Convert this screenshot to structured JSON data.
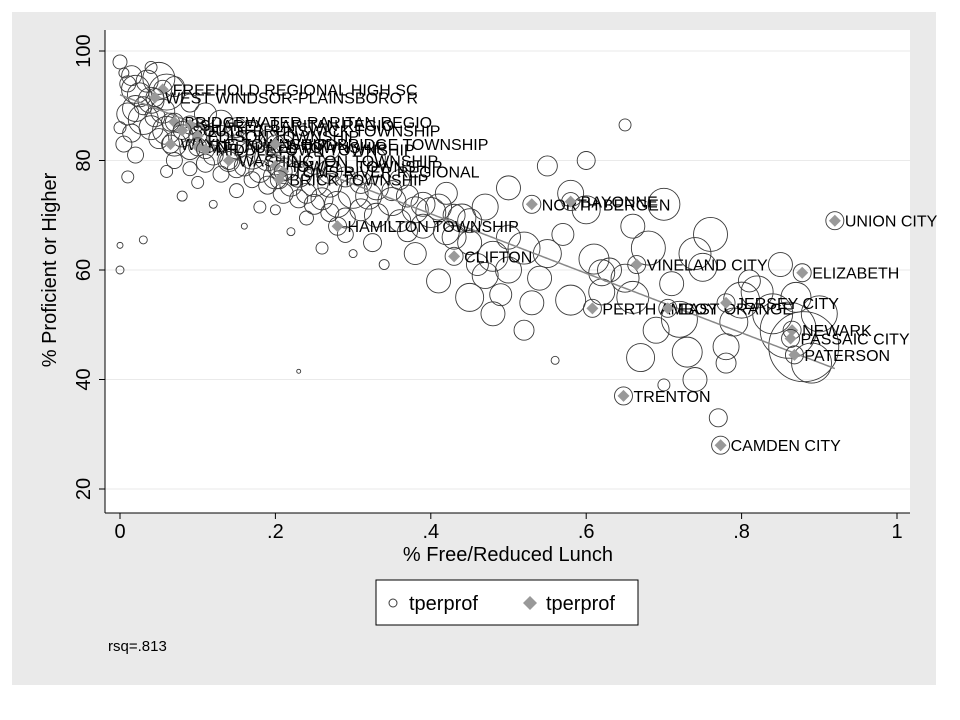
{
  "chart_data": {
    "type": "scatter",
    "title": "",
    "xlabel": "% Free/Reduced Lunch",
    "ylabel": "% Proficient or Higher",
    "xlim": [
      0,
      1
    ],
    "ylim": [
      20,
      100
    ],
    "xticks": [
      0,
      0.2,
      0.4,
      0.6,
      0.8,
      1
    ],
    "xtick_labels": [
      "0",
      ".2",
      ".4",
      ".6",
      ".8",
      "1"
    ],
    "yticks": [
      20,
      40,
      60,
      80,
      100
    ],
    "ytick_labels": [
      "20",
      "40",
      "60",
      "80",
      "100"
    ],
    "grid": "horizontal",
    "legend": {
      "position": "bottom",
      "entries": [
        {
          "marker": "hollow-circle",
          "label": "tperprof"
        },
        {
          "marker": "filled-diamond",
          "label": "tperprof"
        }
      ]
    },
    "note": "rsq=.813",
    "colors": {
      "outer": "#eaeaea",
      "plot": "#ffffff",
      "grid": "#eaeaea",
      "circle": "#3a3a3a",
      "diamond": "#999999",
      "fit_line": "#888888"
    },
    "labeled_districts": [
      {
        "name": "FREEHOLD REGIONAL HIGH SC",
        "x": 0.055,
        "y": 93
      },
      {
        "name": "WEST WINDSOR-PLAINSBORO R",
        "x": 0.045,
        "y": 91.5
      },
      {
        "name": "BRIDGEWATER-RARITAN REGIO",
        "x": 0.07,
        "y": 87
      },
      {
        "name": "SHAREY BARITAN REGIO",
        "x": 0.09,
        "y": 86.5
      },
      {
        "name": "SOUTH BRUNSWICK TOWNSHIP",
        "x": 0.08,
        "y": 85.5
      },
      {
        "name": "EDISON TOWNSHIP",
        "x": 0.1,
        "y": 84.5
      },
      {
        "name": "WAYNE TOWNSHIP",
        "x": 0.065,
        "y": 83
      },
      {
        "name": "MT LAUREL TOWNSHIP",
        "x": 0.1,
        "y": 82.5
      },
      {
        "name": "MIDDLETOWN TOWNSHIP",
        "x": 0.11,
        "y": 82
      },
      {
        "name": "WOODBRIDGE TOWNSHIP",
        "x": 0.2,
        "y": 83
      },
      {
        "name": "WASHINGTON TOWNSHIP",
        "x": 0.14,
        "y": 80
      },
      {
        "name": "HOWELL TOWNSHIP",
        "x": 0.2,
        "y": 79
      },
      {
        "name": "TOMS RIVER REGIONAL",
        "x": 0.21,
        "y": 78
      },
      {
        "name": "BRICK TOWNSHIP",
        "x": 0.205,
        "y": 76.5
      },
      {
        "name": "HAMILTON TOWNSHIP",
        "x": 0.28,
        "y": 68
      },
      {
        "name": "CLIFTON",
        "x": 0.43,
        "y": 62.5
      },
      {
        "name": "NORTH BERGEN",
        "x": 0.53,
        "y": 72
      },
      {
        "name": "BAYONNE",
        "x": 0.58,
        "y": 72.5
      },
      {
        "name": "VINELAND CITY",
        "x": 0.665,
        "y": 61
      },
      {
        "name": "UNION CITY",
        "x": 0.92,
        "y": 69
      },
      {
        "name": "ELIZABETH",
        "x": 0.878,
        "y": 59.5
      },
      {
        "name": "PERTH AMBOY",
        "x": 0.608,
        "y": 53
      },
      {
        "name": "EAST ORANGE",
        "x": 0.705,
        "y": 53
      },
      {
        "name": "JERSEY CITY",
        "x": 0.78,
        "y": 54
      },
      {
        "name": "NEWARK",
        "x": 0.865,
        "y": 49
      },
      {
        "name": "PASSAIC CITY",
        "x": 0.863,
        "y": 47.5
      },
      {
        "name": "PATERSON",
        "x": 0.868,
        "y": 44.5
      },
      {
        "name": "TRENTON",
        "x": 0.648,
        "y": 37
      },
      {
        "name": "CAMDEN CITY",
        "x": 0.773,
        "y": 28
      }
    ],
    "unlabeled_points": [
      [
        0.0,
        98.0,
        7
      ],
      [
        0.005,
        96.0,
        5
      ],
      [
        0.01,
        94.0,
        8
      ],
      [
        0.015,
        95.5,
        10
      ],
      [
        0.02,
        93.0,
        14
      ],
      [
        0.025,
        92.0,
        12
      ],
      [
        0.03,
        90.0,
        9
      ],
      [
        0.035,
        94.5,
        11
      ],
      [
        0.04,
        91.0,
        13
      ],
      [
        0.045,
        88.0,
        10
      ],
      [
        0.05,
        95.0,
        16
      ],
      [
        0.055,
        89.0,
        12
      ],
      [
        0.06,
        92.5,
        18
      ],
      [
        0.065,
        87.0,
        9
      ],
      [
        0.0,
        86.0,
        6
      ],
      [
        0.005,
        83.0,
        8
      ],
      [
        0.01,
        88.5,
        11
      ],
      [
        0.015,
        85.0,
        9
      ],
      [
        0.02,
        89.5,
        13
      ],
      [
        0.03,
        87.5,
        15
      ],
      [
        0.04,
        86.0,
        12
      ],
      [
        0.05,
        84.0,
        10
      ],
      [
        0.06,
        85.5,
        14
      ],
      [
        0.07,
        83.0,
        12
      ],
      [
        0.08,
        84.5,
        11
      ],
      [
        0.09,
        82.0,
        10
      ],
      [
        0.1,
        86.0,
        9
      ],
      [
        0.11,
        83.5,
        12
      ],
      [
        0.12,
        81.0,
        10
      ],
      [
        0.13,
        84.0,
        13
      ],
      [
        0.14,
        80.0,
        11
      ],
      [
        0.15,
        82.5,
        12
      ],
      [
        0.16,
        79.0,
        10
      ],
      [
        0.17,
        81.0,
        14
      ],
      [
        0.18,
        78.0,
        11
      ],
      [
        0.19,
        80.5,
        13
      ],
      [
        0.2,
        77.0,
        12
      ],
      [
        0.21,
        79.0,
        15
      ],
      [
        0.22,
        75.5,
        11
      ],
      [
        0.23,
        77.5,
        13
      ],
      [
        0.24,
        74.0,
        10
      ],
      [
        0.25,
        76.0,
        14
      ],
      [
        0.26,
        73.0,
        11
      ],
      [
        0.27,
        75.5,
        12
      ],
      [
        0.28,
        72.0,
        13
      ],
      [
        0.3,
        74.0,
        15
      ],
      [
        0.31,
        71.0,
        11
      ],
      [
        0.32,
        73.5,
        13
      ],
      [
        0.33,
        70.0,
        12
      ],
      [
        0.35,
        72.5,
        14
      ],
      [
        0.36,
        69.0,
        11
      ],
      [
        0.38,
        71.0,
        13
      ],
      [
        0.39,
        68.0,
        12
      ],
      [
        0.4,
        70.5,
        15
      ],
      [
        0.42,
        67.0,
        13
      ],
      [
        0.44,
        69.5,
        14
      ],
      [
        0.45,
        65.0,
        12
      ],
      [
        0.46,
        61.0,
        11
      ],
      [
        0.48,
        62.5,
        15
      ],
      [
        0.5,
        60.0,
        13
      ],
      [
        0.5,
        66.0,
        12
      ],
      [
        0.52,
        64.0,
        16
      ],
      [
        0.54,
        58.5,
        12
      ],
      [
        0.55,
        63.0,
        14
      ],
      [
        0.57,
        66.5,
        11
      ],
      [
        0.58,
        74.0,
        13
      ],
      [
        0.6,
        71.0,
        14
      ],
      [
        0.61,
        62.0,
        15
      ],
      [
        0.62,
        56.0,
        13
      ],
      [
        0.63,
        60.0,
        12
      ],
      [
        0.65,
        58.5,
        14
      ],
      [
        0.66,
        55.0,
        16
      ],
      [
        0.67,
        44.0,
        14
      ],
      [
        0.68,
        64.0,
        17
      ],
      [
        0.69,
        49.0,
        13
      ],
      [
        0.7,
        72.0,
        16
      ],
      [
        0.71,
        57.5,
        12
      ],
      [
        0.72,
        51.0,
        18
      ],
      [
        0.73,
        45.0,
        15
      ],
      [
        0.74,
        63.0,
        16
      ],
      [
        0.75,
        60.5,
        14
      ],
      [
        0.76,
        66.5,
        17
      ],
      [
        0.77,
        33.0,
        9
      ],
      [
        0.78,
        46.0,
        13
      ],
      [
        0.79,
        50.5,
        14
      ],
      [
        0.8,
        54.5,
        18
      ],
      [
        0.82,
        56.0,
        16
      ],
      [
        0.84,
        52.0,
        20
      ],
      [
        0.86,
        49.0,
        28
      ],
      [
        0.88,
        46.0,
        35
      ],
      [
        0.9,
        52.0,
        18
      ],
      [
        0.12,
        72.0,
        4
      ],
      [
        0.16,
        68.0,
        3
      ],
      [
        0.2,
        71.0,
        5
      ],
      [
        0.22,
        67.0,
        4
      ],
      [
        0.26,
        64.0,
        6
      ],
      [
        0.3,
        63.0,
        4
      ],
      [
        0.34,
        61.0,
        5
      ],
      [
        0.03,
        65.5,
        4
      ],
      [
        0.0,
        64.5,
        3
      ],
      [
        0.0,
        60.0,
        4
      ],
      [
        0.23,
        41.5,
        2
      ],
      [
        0.56,
        43.5,
        4
      ],
      [
        0.65,
        86.5,
        6
      ],
      [
        0.45,
        55.0,
        14
      ],
      [
        0.48,
        52.0,
        12
      ],
      [
        0.52,
        49.0,
        10
      ],
      [
        0.38,
        63.0,
        11
      ],
      [
        0.41,
        58.0,
        12
      ],
      [
        0.27,
        82.0,
        10
      ],
      [
        0.33,
        80.5,
        9
      ],
      [
        0.36,
        76.5,
        10
      ],
      [
        0.42,
        74.0,
        11
      ],
      [
        0.47,
        71.5,
        13
      ],
      [
        0.5,
        75.0,
        12
      ],
      [
        0.55,
        79.0,
        10
      ],
      [
        0.6,
        80.0,
        9
      ],
      [
        0.1,
        76.0,
        6
      ],
      [
        0.08,
        73.5,
        5
      ],
      [
        0.06,
        78.0,
        6
      ],
      [
        0.02,
        81.0,
        8
      ],
      [
        0.01,
        77.0,
        6
      ],
      [
        0.15,
        74.5,
        7
      ],
      [
        0.18,
        71.5,
        6
      ],
      [
        0.24,
        69.5,
        7
      ],
      [
        0.29,
        66.5,
        8
      ],
      [
        0.325,
        65.0,
        9
      ],
      [
        0.37,
        67.0,
        10
      ],
      [
        0.43,
        66.0,
        12
      ],
      [
        0.47,
        59.0,
        13
      ],
      [
        0.49,
        55.5,
        11
      ],
      [
        0.53,
        54.0,
        12
      ],
      [
        0.58,
        54.5,
        15
      ],
      [
        0.62,
        59.5,
        13
      ],
      [
        0.66,
        68.0,
        12
      ],
      [
        0.7,
        39.0,
        6
      ],
      [
        0.74,
        40.0,
        12
      ],
      [
        0.78,
        43.0,
        10
      ],
      [
        0.81,
        58.0,
        11
      ],
      [
        0.85,
        61.0,
        12
      ],
      [
        0.87,
        55.0,
        15
      ],
      [
        0.89,
        43.0,
        20
      ],
      [
        0.04,
        97.0,
        6
      ],
      [
        0.07,
        93.5,
        10
      ],
      [
        0.09,
        90.5,
        9
      ],
      [
        0.11,
        88.5,
        11
      ],
      [
        0.13,
        87.0,
        12
      ],
      [
        0.15,
        86.0,
        10
      ],
      [
        0.17,
        85.0,
        11
      ],
      [
        0.19,
        84.0,
        9
      ],
      [
        0.21,
        82.5,
        12
      ],
      [
        0.23,
        81.0,
        10
      ],
      [
        0.25,
        79.5,
        11
      ],
      [
        0.27,
        78.0,
        12
      ],
      [
        0.29,
        77.0,
        10
      ],
      [
        0.31,
        76.0,
        11
      ],
      [
        0.33,
        75.0,
        12
      ],
      [
        0.35,
        74.5,
        10
      ],
      [
        0.37,
        73.5,
        11
      ],
      [
        0.39,
        72.0,
        12
      ],
      [
        0.41,
        71.5,
        13
      ],
      [
        0.43,
        70.0,
        11
      ],
      [
        0.45,
        69.0,
        12
      ],
      [
        0.07,
        80.0,
        8
      ],
      [
        0.09,
        78.5,
        7
      ],
      [
        0.11,
        79.5,
        9
      ],
      [
        0.13,
        77.5,
        8
      ],
      [
        0.15,
        78.5,
        9
      ],
      [
        0.17,
        76.5,
        8
      ],
      [
        0.19,
        75.5,
        9
      ],
      [
        0.21,
        74.0,
        10
      ],
      [
        0.23,
        73.0,
        9
      ],
      [
        0.25,
        72.0,
        10
      ],
      [
        0.27,
        70.5,
        9
      ],
      [
        0.29,
        69.5,
        10
      ]
    ]
  }
}
